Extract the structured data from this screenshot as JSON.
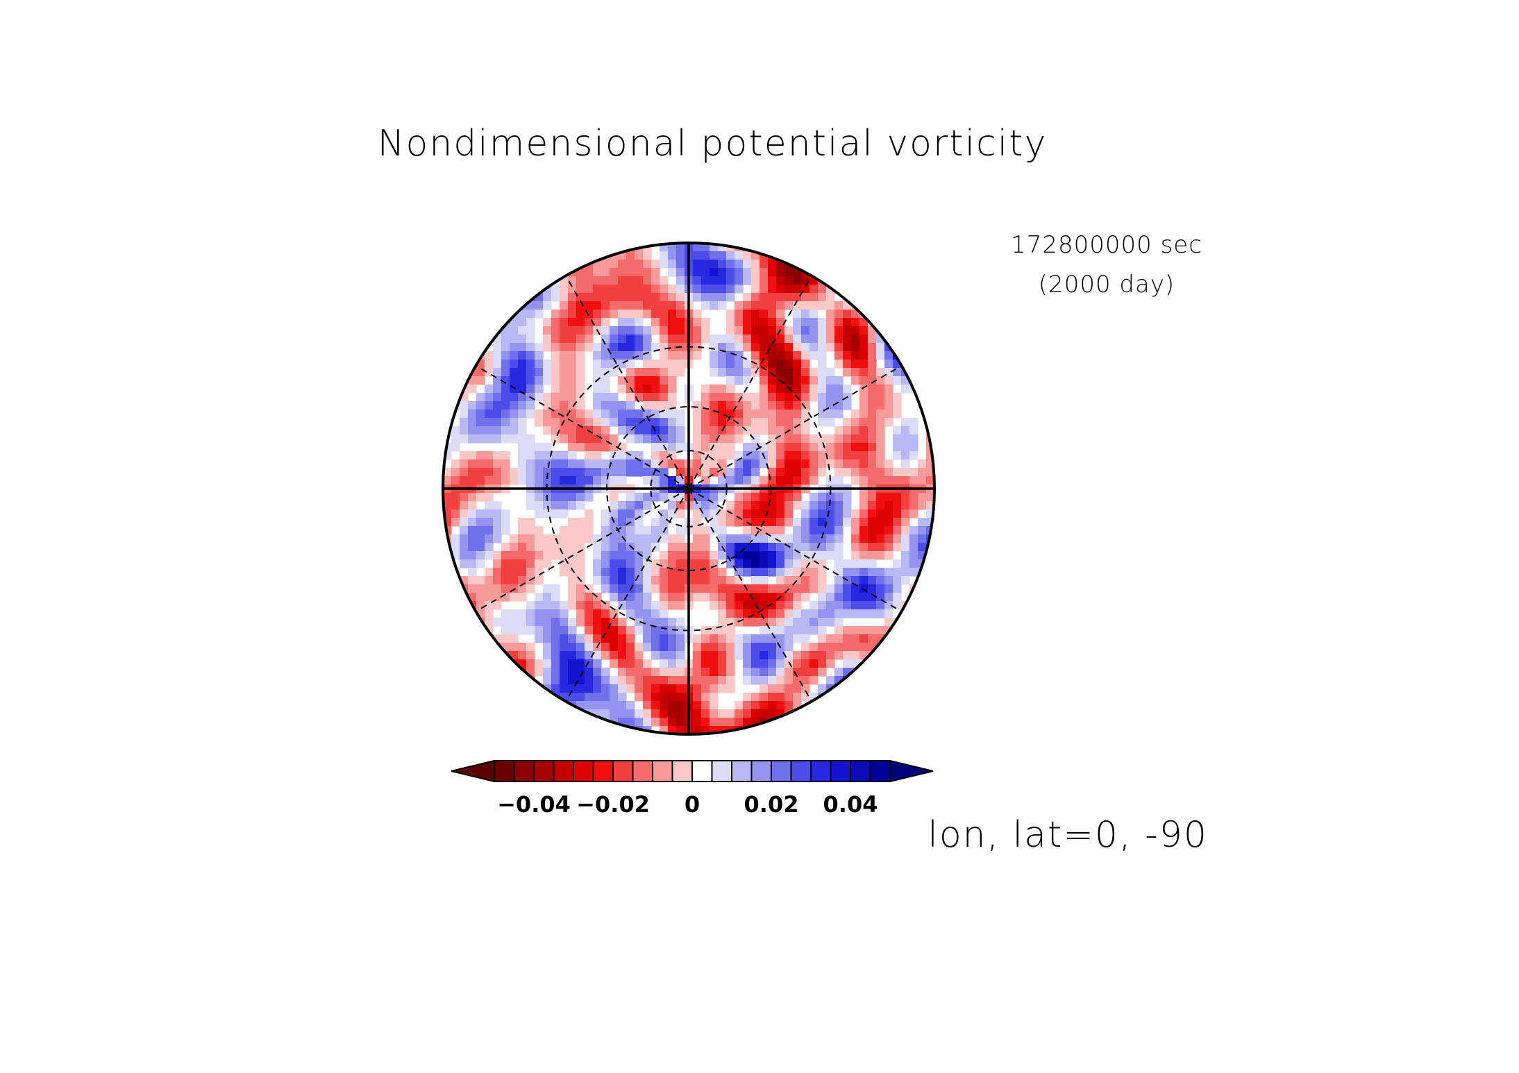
{
  "chart_data": {
    "type": "heatmap",
    "projection": "polar-stereographic",
    "title": "Nondimensional potential vorticity",
    "time_label": "172800000 sec",
    "time_label_days": "(2000 day)",
    "axis_label": "lon, lat=0, -90",
    "colorbar": {
      "ticks": [
        -0.04,
        -0.02,
        0,
        0.02,
        0.04
      ],
      "tick_labels": [
        "−0.04",
        "−0.02",
        "0",
        "0.02",
        "0.04"
      ],
      "range": [
        -0.05,
        0.05
      ],
      "levels": 20,
      "extend": "both",
      "colors": [
        "#6b0000",
        "#8b0000",
        "#a80000",
        "#c40000",
        "#dd0000",
        "#f01010",
        "#f24040",
        "#f56a6a",
        "#f89a9a",
        "#fbc8c8",
        "#ffffff",
        "#dcdcf8",
        "#b8b8f4",
        "#9494f0",
        "#7070ec",
        "#4c4ce8",
        "#2828e0",
        "#1414d0",
        "#0a0ab8",
        "#000099"
      ],
      "under_color": "#5a0000",
      "over_color": "#00007a"
    },
    "grid": {
      "meridians_deg": [
        0,
        30,
        60,
        90,
        120,
        150,
        180,
        210,
        240,
        270,
        300,
        330
      ],
      "latitude_circles_deg": [
        -60,
        -30,
        0
      ]
    }
  }
}
